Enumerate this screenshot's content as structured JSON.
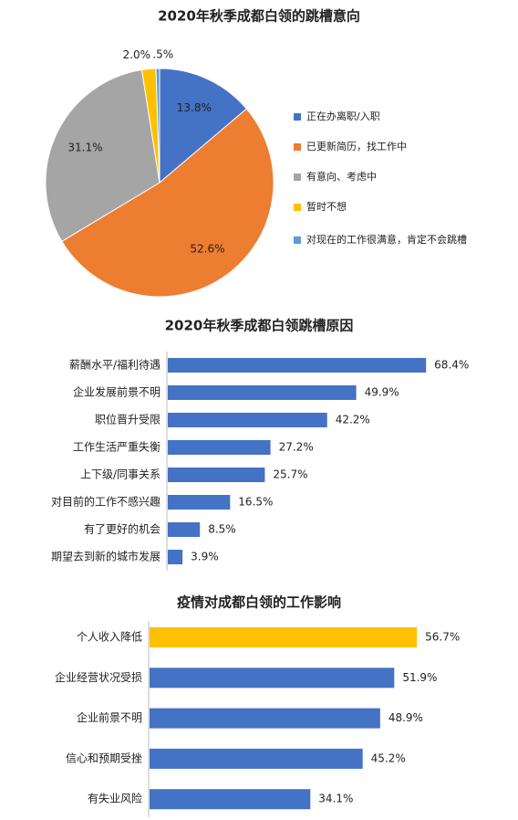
{
  "chart_data": [
    {
      "type": "pie",
      "title": "2020年秋季成都白领的跳槽意向",
      "categories": [
        "正在办离职/入职",
        "已更新简历，找工作中",
        "有意向、考虑中",
        "暂时不想",
        "对现在的工作很满意，肯定不会跳槽"
      ],
      "values": [
        13.8,
        52.6,
        31.1,
        2.0,
        0.5
      ],
      "value_labels": [
        "13.8%",
        "52.6%",
        "31.1%",
        "2.0%",
        ".5%"
      ],
      "colors": [
        "#4472c4",
        "#ed7d31",
        "#a5a5a5",
        "#ffc000",
        "#5b9bd5"
      ],
      "legend": "right"
    },
    {
      "type": "hbar",
      "title": "2020年秋季成都白领跳槽原因",
      "categories": [
        "薪酬水平/福利待遇",
        "企业发展前景不明",
        "职位晋升受限",
        "工作生活严重失衡",
        "上下级/同事关系",
        "对目前的工作不感兴趣",
        "有了更好的机会",
        "期望去到新的城市发展"
      ],
      "values": [
        68.4,
        49.9,
        42.2,
        27.2,
        25.7,
        16.5,
        8.5,
        3.9
      ],
      "value_labels": [
        "68.4%",
        "49.9%",
        "42.2%",
        "27.2%",
        "25.7%",
        "16.5%",
        "8.5%",
        "3.9%"
      ],
      "colors": [
        "#4472c4",
        "#4472c4",
        "#4472c4",
        "#4472c4",
        "#4472c4",
        "#4472c4",
        "#4472c4",
        "#4472c4"
      ]
    },
    {
      "type": "hbar",
      "title": "疫情对成都白领的工作影响",
      "categories": [
        "个人收入降低",
        "企业经营状况受损",
        "企业前景不明",
        "信心和预期受挫",
        "有失业风险"
      ],
      "values": [
        56.7,
        51.9,
        48.9,
        45.2,
        34.1
      ],
      "value_labels": [
        "56.7%",
        "51.9%",
        "48.9%",
        "45.2%",
        "34.1%"
      ],
      "colors": [
        "#ffc000",
        "#4472c4",
        "#4472c4",
        "#4472c4",
        "#4472c4"
      ]
    }
  ]
}
